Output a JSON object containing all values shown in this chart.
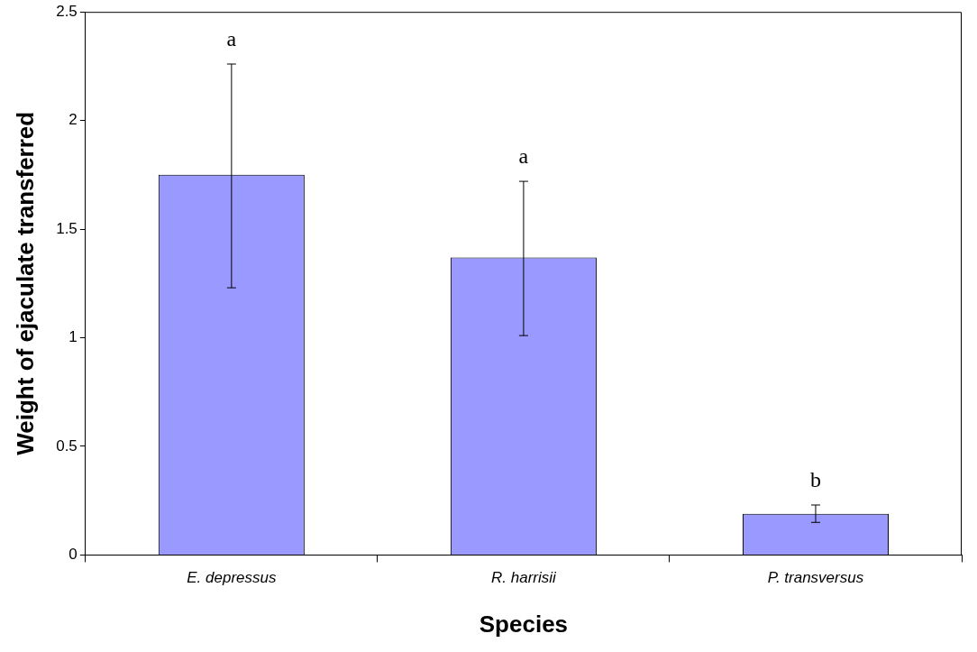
{
  "chart_data": {
    "type": "bar",
    "xlabel": "Species",
    "ylabel": "Weight of ejaculate transferred",
    "categories": [
      "E. depressus",
      "R. harrisii",
      "P. transversus"
    ],
    "values": [
      1.75,
      1.37,
      0.19
    ],
    "errors": [
      [
        1.23,
        2.26
      ],
      [
        1.01,
        1.72
      ],
      [
        0.15,
        0.23
      ]
    ],
    "color": "#9999ff",
    "ylim": [
      0,
      2.5
    ],
    "yticks": [
      0,
      0.5,
      1,
      1.5,
      2,
      2.5
    ],
    "annotations": [
      "a",
      "a",
      "b"
    ]
  }
}
